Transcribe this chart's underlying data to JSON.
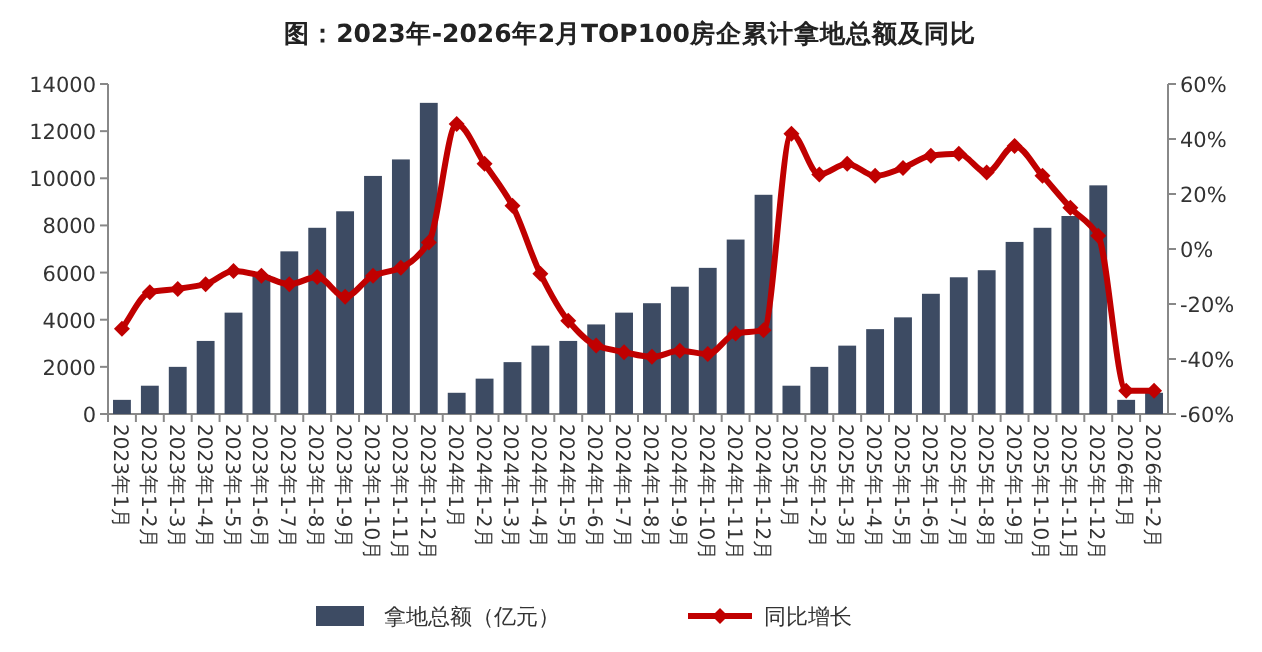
{
  "chart_data": {
    "type": "bar",
    "title": "图：2023年-2026年2月TOP100房企累计拿地总额及同比",
    "categories": [
      "2023年1月",
      "2023年1-2月",
      "2023年1-3月",
      "2023年1-4月",
      "2023年1-5月",
      "2023年1-6月",
      "2023年1-7月",
      "2023年1-8月",
      "2023年1-9月",
      "2023年1-10月",
      "2023年1-11月",
      "2023年1-12月",
      "2024年1月",
      "2024年1-2月",
      "2024年1-3月",
      "2024年1-4月",
      "2024年1-5月",
      "2024年1-6月",
      "2024年1-7月",
      "2024年1-8月",
      "2024年1-9月",
      "2024年1-10月",
      "2024年1-11月",
      "2024年1-12月",
      "2025年1月",
      "2025年1-2月",
      "2025年1-3月",
      "2025年1-4月",
      "2025年1-5月",
      "2025年1-6月",
      "2025年1-7月",
      "2025年1-8月",
      "2025年1-9月",
      "2025年1-10月",
      "2025年1-11月",
      "2025年1-12月",
      "2026年1月",
      "2026年1-2月"
    ],
    "series": [
      {
        "name": "拿地总额（亿元）",
        "color": "#3d4b63",
        "values": [
          600,
          1200,
          2000,
          3100,
          4300,
          5900,
          6900,
          7900,
          8600,
          10100,
          10800,
          13200,
          900,
          1500,
          2200,
          2900,
          3100,
          3800,
          4300,
          4700,
          5400,
          6200,
          7400,
          9300,
          1200,
          2000,
          2900,
          3600,
          4100,
          5100,
          5800,
          6100,
          7300,
          7900,
          8400,
          9700,
          600,
          900
        ]
      },
      {
        "name": "同比增长",
        "type": "line",
        "axis": "y2",
        "color": "#c00000",
        "marker": "diamond",
        "values": [
          -29,
          -15.7,
          -14.5,
          -12.8,
          -8,
          -9.7,
          -12.8,
          -10.2,
          -17.4,
          -9.7,
          -6.8,
          2.4,
          45.5,
          31,
          15.7,
          -9,
          -26.1,
          -35.1,
          -37.5,
          -39.2,
          -37,
          -38.2,
          -30.7,
          -29.5,
          41.9,
          27.1,
          31,
          26.6,
          29.5,
          33.9,
          34.6,
          27.8,
          37.5,
          26.6,
          15,
          4.8,
          -51.5,
          -51.5
        ]
      }
    ],
    "ylim": [
      0,
      14000
    ],
    "yticks": [
      0,
      2000,
      4000,
      6000,
      8000,
      10000,
      12000,
      14000
    ],
    "y2lim": [
      -60,
      60
    ],
    "y2ticks": [
      {
        "value": -60,
        "label": "-60%"
      },
      {
        "value": -40,
        "label": "-40%"
      },
      {
        "value": -20,
        "label": "-20%"
      },
      {
        "value": 0,
        "label": "0%"
      },
      {
        "value": 20,
        "label": "20%"
      },
      {
        "value": 40,
        "label": "40%"
      },
      {
        "value": 60,
        "label": "60%"
      }
    ],
    "grid": false,
    "legend": "bottom"
  }
}
